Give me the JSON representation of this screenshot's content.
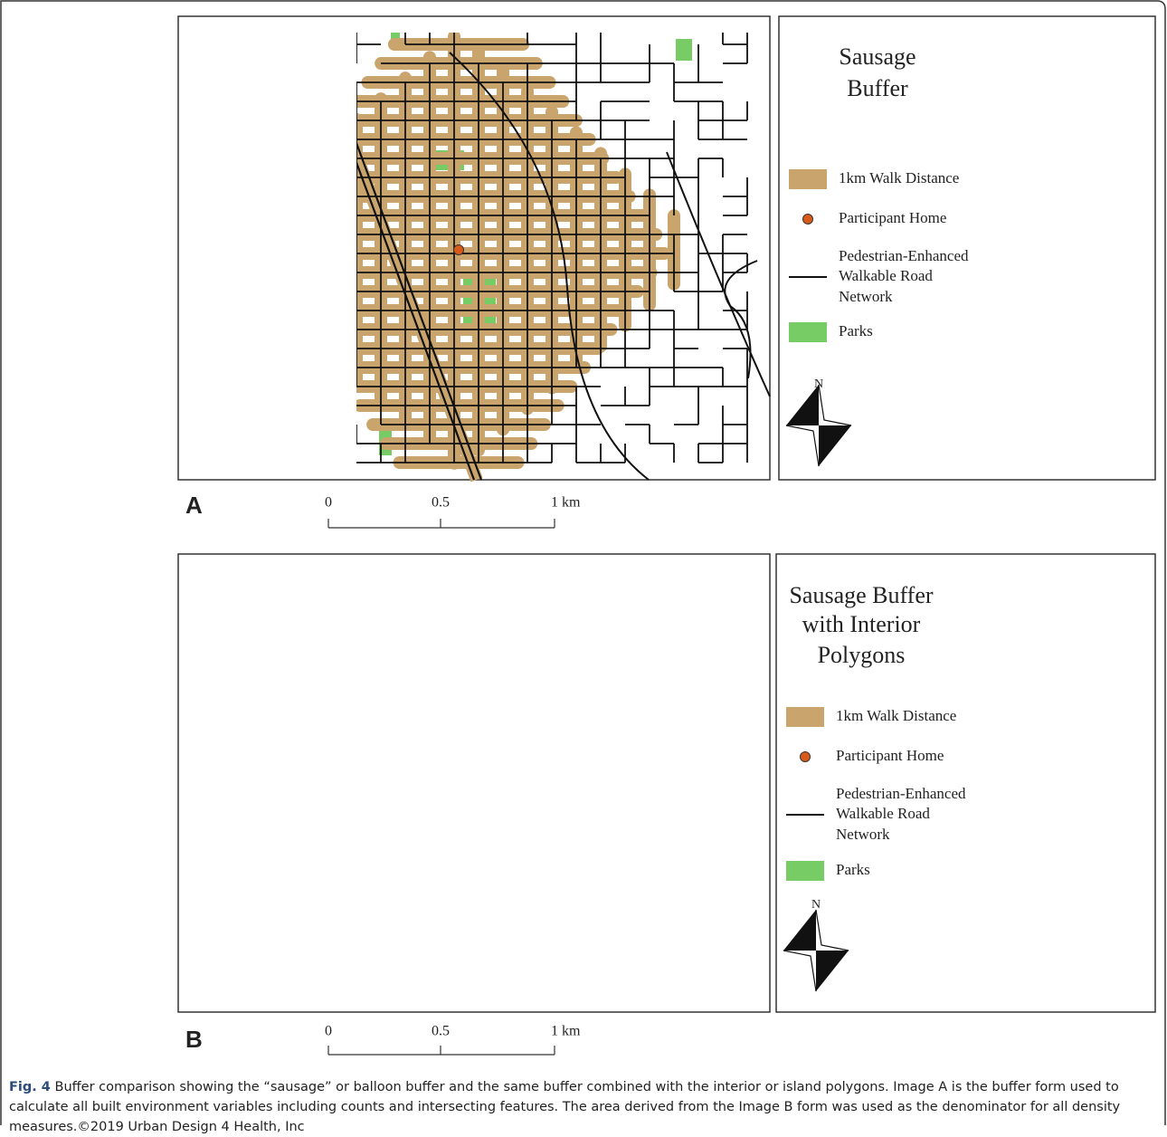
{
  "panels": [
    {
      "letter": "A",
      "legend": {
        "title": [
          "Sausage",
          "Buffer"
        ],
        "walk": "1km Walk Distance",
        "home": "Participant Home",
        "roads": [
          "Pedestrian-Enhanced",
          "Walkable Road",
          "Network"
        ],
        "parks": "Parks",
        "north": "N"
      },
      "scale": [
        "0",
        "0.5",
        "1 km"
      ]
    },
    {
      "letter": "B",
      "legend": {
        "title": [
          "Sausage Buffer",
          "with Interior",
          "Polygons"
        ],
        "walk": "1km Walk Distance",
        "home": "Participant Home",
        "roads": [
          "Pedestrian-Enhanced",
          "Walkable Road",
          "Network"
        ],
        "parks": "Parks",
        "north": "N"
      },
      "scale": [
        "0",
        "0.5",
        "1 km"
      ]
    }
  ],
  "caption": {
    "label": "Fig. 4",
    "text": "Buffer comparison showing the “sausage” or balloon buffer and the same buffer combined with the interior or island polygons. Image A is the buffer form used to calculate all built environment variables including counts and intersecting features. The area derived from the Image B form was used as the denominator for all density measures.©2019 Urban Design 4 Health, Inc"
  }
}
